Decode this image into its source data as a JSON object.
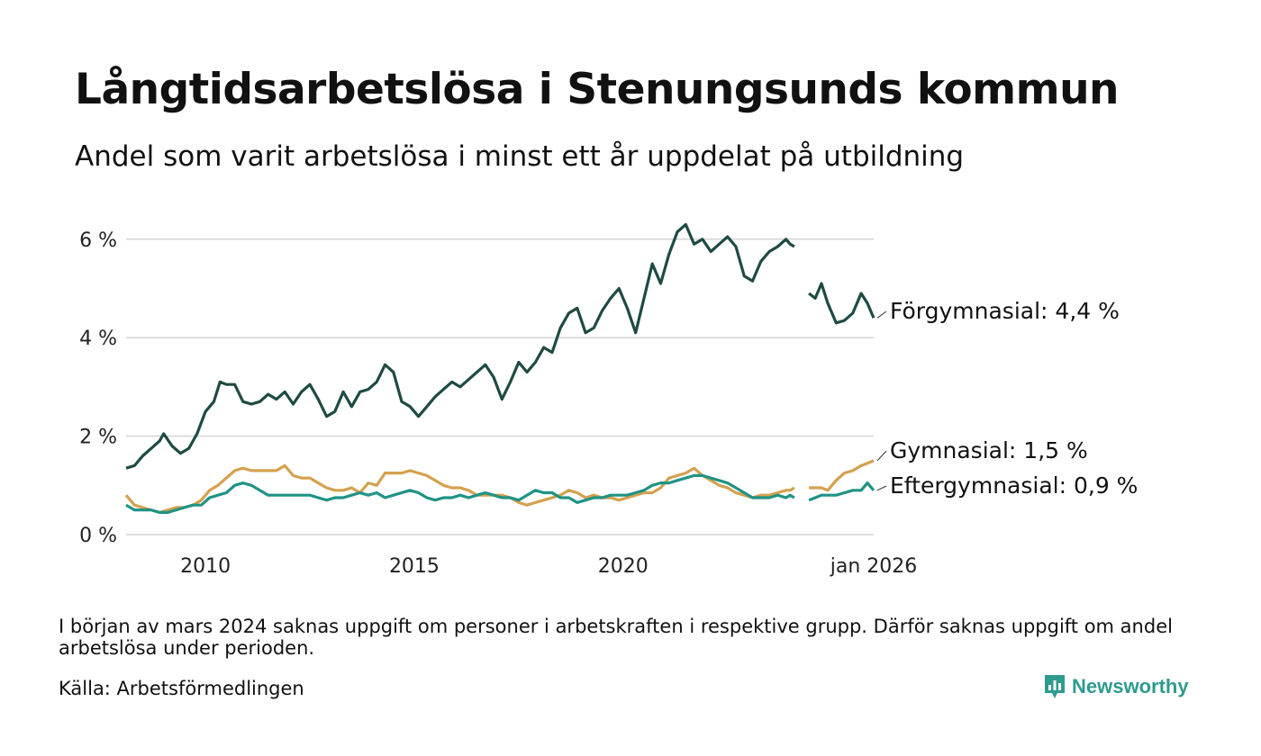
{
  "title": "Långtidsarbetslösa i Stenungsunds kommun",
  "subtitle": "Andel som varit arbetslösa i minst ett år uppdelat på utbildning",
  "note": "I början av mars 2024 saknas uppgift om personer i arbetskraften i respektive grupp. Därför saknas uppgift om andel arbetslösa under perioden.",
  "source": "Källa: Arbetsförmedlingen",
  "brand": "Newsworthy",
  "colors": {
    "forgymnasial": "#1f4a44",
    "gymnasial": "#d4a14e",
    "eftergymnasial": "#1f9385",
    "grid": "#dddddd",
    "brand": "#2f9b8d"
  },
  "chart_data": {
    "type": "line",
    "title": "Långtidsarbetslösa i Stenungsunds kommun",
    "xlabel": "",
    "ylabel": "",
    "xlim": [
      2008.1,
      2026.0
    ],
    "ylim": [
      0,
      6.5
    ],
    "y_ticks": [
      {
        "value": 0,
        "label": "0 %"
      },
      {
        "value": 2,
        "label": "2 %"
      },
      {
        "value": 4,
        "label": "4 %"
      },
      {
        "value": 6,
        "label": "6 %"
      }
    ],
    "x_ticks": [
      {
        "value": 2010,
        "label": "2010"
      },
      {
        "value": 2015,
        "label": "2015"
      },
      {
        "value": 2020,
        "label": "2020"
      },
      {
        "value": 2026,
        "label": "jan 2026"
      }
    ],
    "gap": [
      2024.17,
      2024.42
    ],
    "series": [
      {
        "name": "Förgymnasial",
        "color_key": "forgymnasial",
        "end_label": "Förgymnasial: 4,4 %",
        "points": [
          [
            2008.1,
            1.35
          ],
          [
            2008.3,
            1.4
          ],
          [
            2008.5,
            1.6
          ],
          [
            2008.7,
            1.75
          ],
          [
            2008.9,
            1.9
          ],
          [
            2009.0,
            2.05
          ],
          [
            2009.2,
            1.8
          ],
          [
            2009.4,
            1.65
          ],
          [
            2009.6,
            1.75
          ],
          [
            2009.8,
            2.05
          ],
          [
            2010.0,
            2.5
          ],
          [
            2010.2,
            2.7
          ],
          [
            2010.35,
            3.1
          ],
          [
            2010.5,
            3.05
          ],
          [
            2010.7,
            3.05
          ],
          [
            2010.9,
            2.7
          ],
          [
            2011.1,
            2.65
          ],
          [
            2011.3,
            2.7
          ],
          [
            2011.5,
            2.85
          ],
          [
            2011.7,
            2.75
          ],
          [
            2011.9,
            2.9
          ],
          [
            2012.1,
            2.65
          ],
          [
            2012.3,
            2.9
          ],
          [
            2012.5,
            3.05
          ],
          [
            2012.7,
            2.75
          ],
          [
            2012.9,
            2.4
          ],
          [
            2013.1,
            2.5
          ],
          [
            2013.3,
            2.9
          ],
          [
            2013.5,
            2.6
          ],
          [
            2013.7,
            2.9
          ],
          [
            2013.9,
            2.95
          ],
          [
            2014.1,
            3.1
          ],
          [
            2014.3,
            3.45
          ],
          [
            2014.5,
            3.3
          ],
          [
            2014.7,
            2.7
          ],
          [
            2014.9,
            2.6
          ],
          [
            2015.1,
            2.4
          ],
          [
            2015.3,
            2.6
          ],
          [
            2015.5,
            2.8
          ],
          [
            2015.7,
            2.95
          ],
          [
            2015.9,
            3.1
          ],
          [
            2016.1,
            3.0
          ],
          [
            2016.3,
            3.15
          ],
          [
            2016.5,
            3.3
          ],
          [
            2016.7,
            3.45
          ],
          [
            2016.9,
            3.2
          ],
          [
            2017.1,
            2.75
          ],
          [
            2017.3,
            3.1
          ],
          [
            2017.5,
            3.5
          ],
          [
            2017.7,
            3.3
          ],
          [
            2017.9,
            3.5
          ],
          [
            2018.1,
            3.8
          ],
          [
            2018.3,
            3.7
          ],
          [
            2018.5,
            4.2
          ],
          [
            2018.7,
            4.5
          ],
          [
            2018.9,
            4.6
          ],
          [
            2019.1,
            4.1
          ],
          [
            2019.3,
            4.2
          ],
          [
            2019.5,
            4.55
          ],
          [
            2019.7,
            4.8
          ],
          [
            2019.9,
            5.0
          ],
          [
            2020.1,
            4.6
          ],
          [
            2020.3,
            4.1
          ],
          [
            2020.5,
            4.8
          ],
          [
            2020.7,
            5.5
          ],
          [
            2020.9,
            5.1
          ],
          [
            2021.1,
            5.7
          ],
          [
            2021.3,
            6.15
          ],
          [
            2021.5,
            6.3
          ],
          [
            2021.7,
            5.9
          ],
          [
            2021.9,
            6.0
          ],
          [
            2022.1,
            5.75
          ],
          [
            2022.3,
            5.9
          ],
          [
            2022.5,
            6.05
          ],
          [
            2022.7,
            5.85
          ],
          [
            2022.9,
            5.25
          ],
          [
            2023.1,
            5.15
          ],
          [
            2023.3,
            5.55
          ],
          [
            2023.5,
            5.75
          ],
          [
            2023.7,
            5.85
          ],
          [
            2023.9,
            6.0
          ],
          [
            2024.0,
            5.9
          ],
          [
            2024.1,
            5.85
          ],
          [
            2024.45,
            4.9
          ],
          [
            2024.6,
            4.8
          ],
          [
            2024.75,
            5.1
          ],
          [
            2024.9,
            4.7
          ],
          [
            2025.1,
            4.3
          ],
          [
            2025.3,
            4.35
          ],
          [
            2025.5,
            4.5
          ],
          [
            2025.7,
            4.9
          ],
          [
            2025.85,
            4.7
          ],
          [
            2026.0,
            4.4
          ]
        ]
      },
      {
        "name": "Gymnasial",
        "color_key": "gymnasial",
        "end_label": "Gymnasial: 1,5 %",
        "points": [
          [
            2008.1,
            0.8
          ],
          [
            2008.3,
            0.6
          ],
          [
            2008.5,
            0.55
          ],
          [
            2008.7,
            0.5
          ],
          [
            2008.9,
            0.45
          ],
          [
            2009.1,
            0.5
          ],
          [
            2009.3,
            0.55
          ],
          [
            2009.5,
            0.55
          ],
          [
            2009.7,
            0.6
          ],
          [
            2009.9,
            0.7
          ],
          [
            2010.1,
            0.9
          ],
          [
            2010.3,
            1.0
          ],
          [
            2010.5,
            1.15
          ],
          [
            2010.7,
            1.3
          ],
          [
            2010.9,
            1.35
          ],
          [
            2011.1,
            1.3
          ],
          [
            2011.3,
            1.3
          ],
          [
            2011.5,
            1.3
          ],
          [
            2011.7,
            1.3
          ],
          [
            2011.9,
            1.4
          ],
          [
            2012.1,
            1.2
          ],
          [
            2012.3,
            1.15
          ],
          [
            2012.5,
            1.15
          ],
          [
            2012.7,
            1.05
          ],
          [
            2012.9,
            0.95
          ],
          [
            2013.1,
            0.9
          ],
          [
            2013.3,
            0.9
          ],
          [
            2013.5,
            0.95
          ],
          [
            2013.7,
            0.85
          ],
          [
            2013.9,
            1.05
          ],
          [
            2014.1,
            1.0
          ],
          [
            2014.3,
            1.25
          ],
          [
            2014.5,
            1.25
          ],
          [
            2014.7,
            1.25
          ],
          [
            2014.9,
            1.3
          ],
          [
            2015.1,
            1.25
          ],
          [
            2015.3,
            1.2
          ],
          [
            2015.5,
            1.1
          ],
          [
            2015.7,
            1.0
          ],
          [
            2015.9,
            0.95
          ],
          [
            2016.1,
            0.95
          ],
          [
            2016.3,
            0.9
          ],
          [
            2016.5,
            0.8
          ],
          [
            2016.7,
            0.8
          ],
          [
            2016.9,
            0.8
          ],
          [
            2017.1,
            0.8
          ],
          [
            2017.3,
            0.75
          ],
          [
            2017.5,
            0.65
          ],
          [
            2017.7,
            0.6
          ],
          [
            2017.9,
            0.65
          ],
          [
            2018.1,
            0.7
          ],
          [
            2018.3,
            0.75
          ],
          [
            2018.5,
            0.8
          ],
          [
            2018.7,
            0.9
          ],
          [
            2018.9,
            0.85
          ],
          [
            2019.1,
            0.75
          ],
          [
            2019.3,
            0.8
          ],
          [
            2019.5,
            0.75
          ],
          [
            2019.7,
            0.75
          ],
          [
            2019.9,
            0.7
          ],
          [
            2020.1,
            0.75
          ],
          [
            2020.3,
            0.8
          ],
          [
            2020.5,
            0.85
          ],
          [
            2020.7,
            0.85
          ],
          [
            2020.9,
            0.95
          ],
          [
            2021.1,
            1.15
          ],
          [
            2021.3,
            1.2
          ],
          [
            2021.5,
            1.25
          ],
          [
            2021.7,
            1.35
          ],
          [
            2021.9,
            1.2
          ],
          [
            2022.1,
            1.1
          ],
          [
            2022.3,
            1.0
          ],
          [
            2022.5,
            0.95
          ],
          [
            2022.7,
            0.85
          ],
          [
            2022.9,
            0.8
          ],
          [
            2023.1,
            0.75
          ],
          [
            2023.3,
            0.8
          ],
          [
            2023.5,
            0.8
          ],
          [
            2023.7,
            0.85
          ],
          [
            2023.9,
            0.9
          ],
          [
            2024.0,
            0.9
          ],
          [
            2024.1,
            0.95
          ],
          [
            2024.45,
            0.95
          ],
          [
            2024.6,
            0.95
          ],
          [
            2024.75,
            0.95
          ],
          [
            2024.9,
            0.9
          ],
          [
            2025.1,
            1.1
          ],
          [
            2025.3,
            1.25
          ],
          [
            2025.5,
            1.3
          ],
          [
            2025.7,
            1.4
          ],
          [
            2025.85,
            1.45
          ],
          [
            2026.0,
            1.5
          ]
        ]
      },
      {
        "name": "Eftergymnasial",
        "color_key": "eftergymnasial",
        "end_label": "Eftergymnasial: 0,9 %",
        "points": [
          [
            2008.1,
            0.6
          ],
          [
            2008.3,
            0.5
          ],
          [
            2008.5,
            0.5
          ],
          [
            2008.7,
            0.5
          ],
          [
            2008.9,
            0.45
          ],
          [
            2009.1,
            0.45
          ],
          [
            2009.3,
            0.5
          ],
          [
            2009.5,
            0.55
          ],
          [
            2009.7,
            0.6
          ],
          [
            2009.9,
            0.6
          ],
          [
            2010.1,
            0.75
          ],
          [
            2010.3,
            0.8
          ],
          [
            2010.5,
            0.85
          ],
          [
            2010.7,
            1.0
          ],
          [
            2010.9,
            1.05
          ],
          [
            2011.1,
            1.0
          ],
          [
            2011.3,
            0.9
          ],
          [
            2011.5,
            0.8
          ],
          [
            2011.7,
            0.8
          ],
          [
            2011.9,
            0.8
          ],
          [
            2012.1,
            0.8
          ],
          [
            2012.3,
            0.8
          ],
          [
            2012.5,
            0.8
          ],
          [
            2012.7,
            0.75
          ],
          [
            2012.9,
            0.7
          ],
          [
            2013.1,
            0.75
          ],
          [
            2013.3,
            0.75
          ],
          [
            2013.5,
            0.8
          ],
          [
            2013.7,
            0.85
          ],
          [
            2013.9,
            0.8
          ],
          [
            2014.1,
            0.85
          ],
          [
            2014.3,
            0.75
          ],
          [
            2014.5,
            0.8
          ],
          [
            2014.7,
            0.85
          ],
          [
            2014.9,
            0.9
          ],
          [
            2015.1,
            0.85
          ],
          [
            2015.3,
            0.75
          ],
          [
            2015.5,
            0.7
          ],
          [
            2015.7,
            0.75
          ],
          [
            2015.9,
            0.75
          ],
          [
            2016.1,
            0.8
          ],
          [
            2016.3,
            0.75
          ],
          [
            2016.5,
            0.8
          ],
          [
            2016.7,
            0.85
          ],
          [
            2016.9,
            0.8
          ],
          [
            2017.1,
            0.75
          ],
          [
            2017.3,
            0.75
          ],
          [
            2017.5,
            0.7
          ],
          [
            2017.7,
            0.8
          ],
          [
            2017.9,
            0.9
          ],
          [
            2018.1,
            0.85
          ],
          [
            2018.3,
            0.85
          ],
          [
            2018.5,
            0.75
          ],
          [
            2018.7,
            0.75
          ],
          [
            2018.9,
            0.65
          ],
          [
            2019.1,
            0.7
          ],
          [
            2019.3,
            0.75
          ],
          [
            2019.5,
            0.75
          ],
          [
            2019.7,
            0.8
          ],
          [
            2019.9,
            0.8
          ],
          [
            2020.1,
            0.8
          ],
          [
            2020.3,
            0.85
          ],
          [
            2020.5,
            0.9
          ],
          [
            2020.7,
            1.0
          ],
          [
            2020.9,
            1.05
          ],
          [
            2021.1,
            1.05
          ],
          [
            2021.3,
            1.1
          ],
          [
            2021.5,
            1.15
          ],
          [
            2021.7,
            1.2
          ],
          [
            2021.9,
            1.2
          ],
          [
            2022.1,
            1.15
          ],
          [
            2022.3,
            1.1
          ],
          [
            2022.5,
            1.05
          ],
          [
            2022.7,
            0.95
          ],
          [
            2022.9,
            0.85
          ],
          [
            2023.1,
            0.75
          ],
          [
            2023.3,
            0.75
          ],
          [
            2023.5,
            0.75
          ],
          [
            2023.7,
            0.8
          ],
          [
            2023.9,
            0.75
          ],
          [
            2024.0,
            0.8
          ],
          [
            2024.1,
            0.75
          ],
          [
            2024.45,
            0.7
          ],
          [
            2024.6,
            0.75
          ],
          [
            2024.75,
            0.8
          ],
          [
            2024.9,
            0.8
          ],
          [
            2025.1,
            0.8
          ],
          [
            2025.3,
            0.85
          ],
          [
            2025.5,
            0.9
          ],
          [
            2025.7,
            0.9
          ],
          [
            2025.85,
            1.05
          ],
          [
            2026.0,
            0.9
          ]
        ]
      }
    ]
  }
}
